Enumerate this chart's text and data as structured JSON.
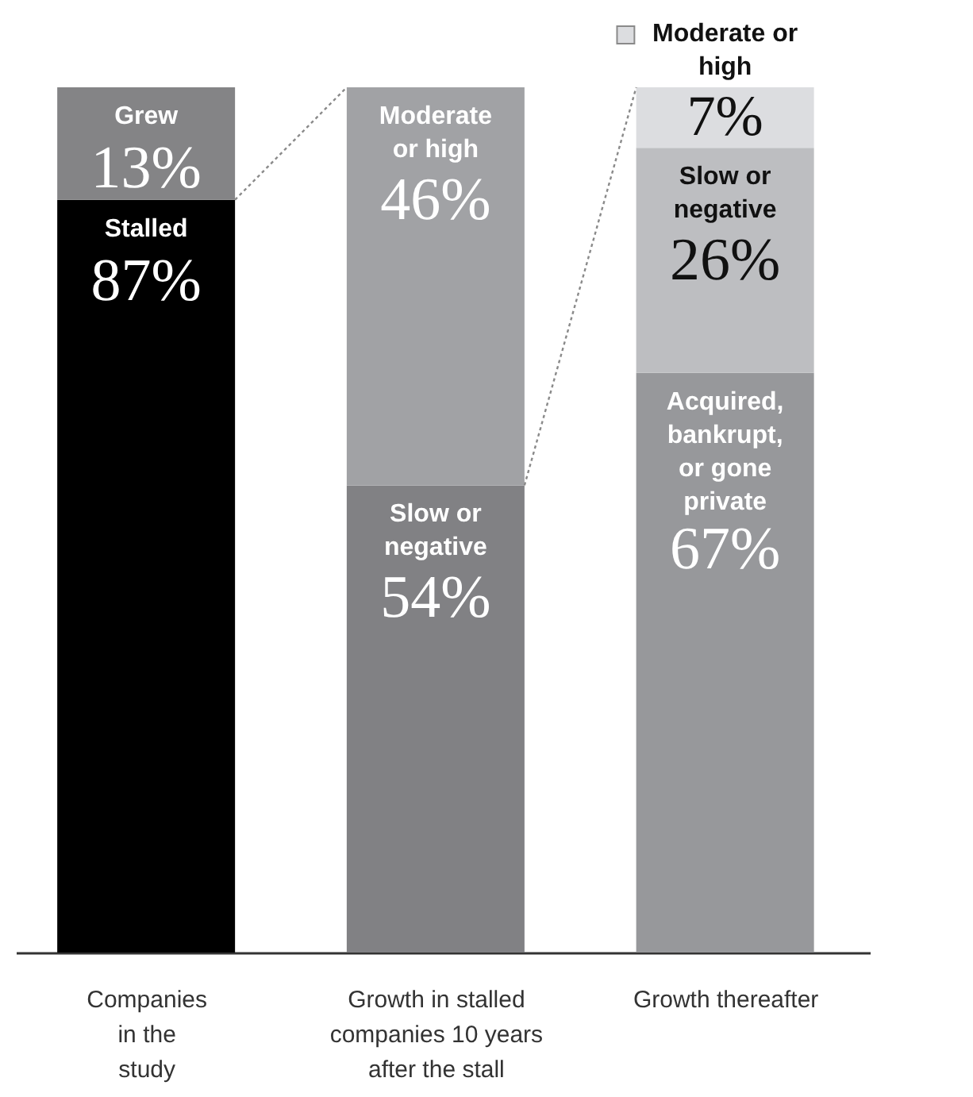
{
  "chart_data": {
    "type": "bar",
    "stacked": true,
    "categories": [
      "Companies in the study",
      "Growth in stalled companies 10 years after the stall",
      "Growth thereafter"
    ],
    "series": [
      {
        "name": "Stalled",
        "color": "#000000",
        "values": [
          87,
          null,
          null
        ],
        "value_labels": [
          "87%",
          null,
          null
        ]
      },
      {
        "name": "Grew",
        "color": "#848486",
        "values": [
          13,
          null,
          null
        ],
        "value_labels": [
          "13%",
          null,
          null
        ]
      },
      {
        "name": "Slow or negative",
        "color": "#818184",
        "values": [
          null,
          54,
          null
        ],
        "value_labels": [
          null,
          "54%",
          null
        ]
      },
      {
        "name": "Moderate or high",
        "color": "#a1a2a5",
        "values": [
          null,
          46,
          null
        ],
        "value_labels": [
          null,
          "46%",
          null
        ]
      },
      {
        "name": "Acquired, bankrupt, or gone private",
        "color": "#97989b",
        "values": [
          null,
          null,
          67
        ],
        "value_labels": [
          null,
          null,
          "67%"
        ]
      },
      {
        "name": "Slow or negative",
        "color": "#bdbec1",
        "values": [
          null,
          null,
          26
        ],
        "value_labels": [
          null,
          null,
          "26%"
        ]
      },
      {
        "name": "Moderate or high",
        "color": "#dcdde0",
        "values": [
          null,
          null,
          7
        ],
        "value_labels": [
          null,
          null,
          "7%"
        ]
      }
    ]
  }
}
